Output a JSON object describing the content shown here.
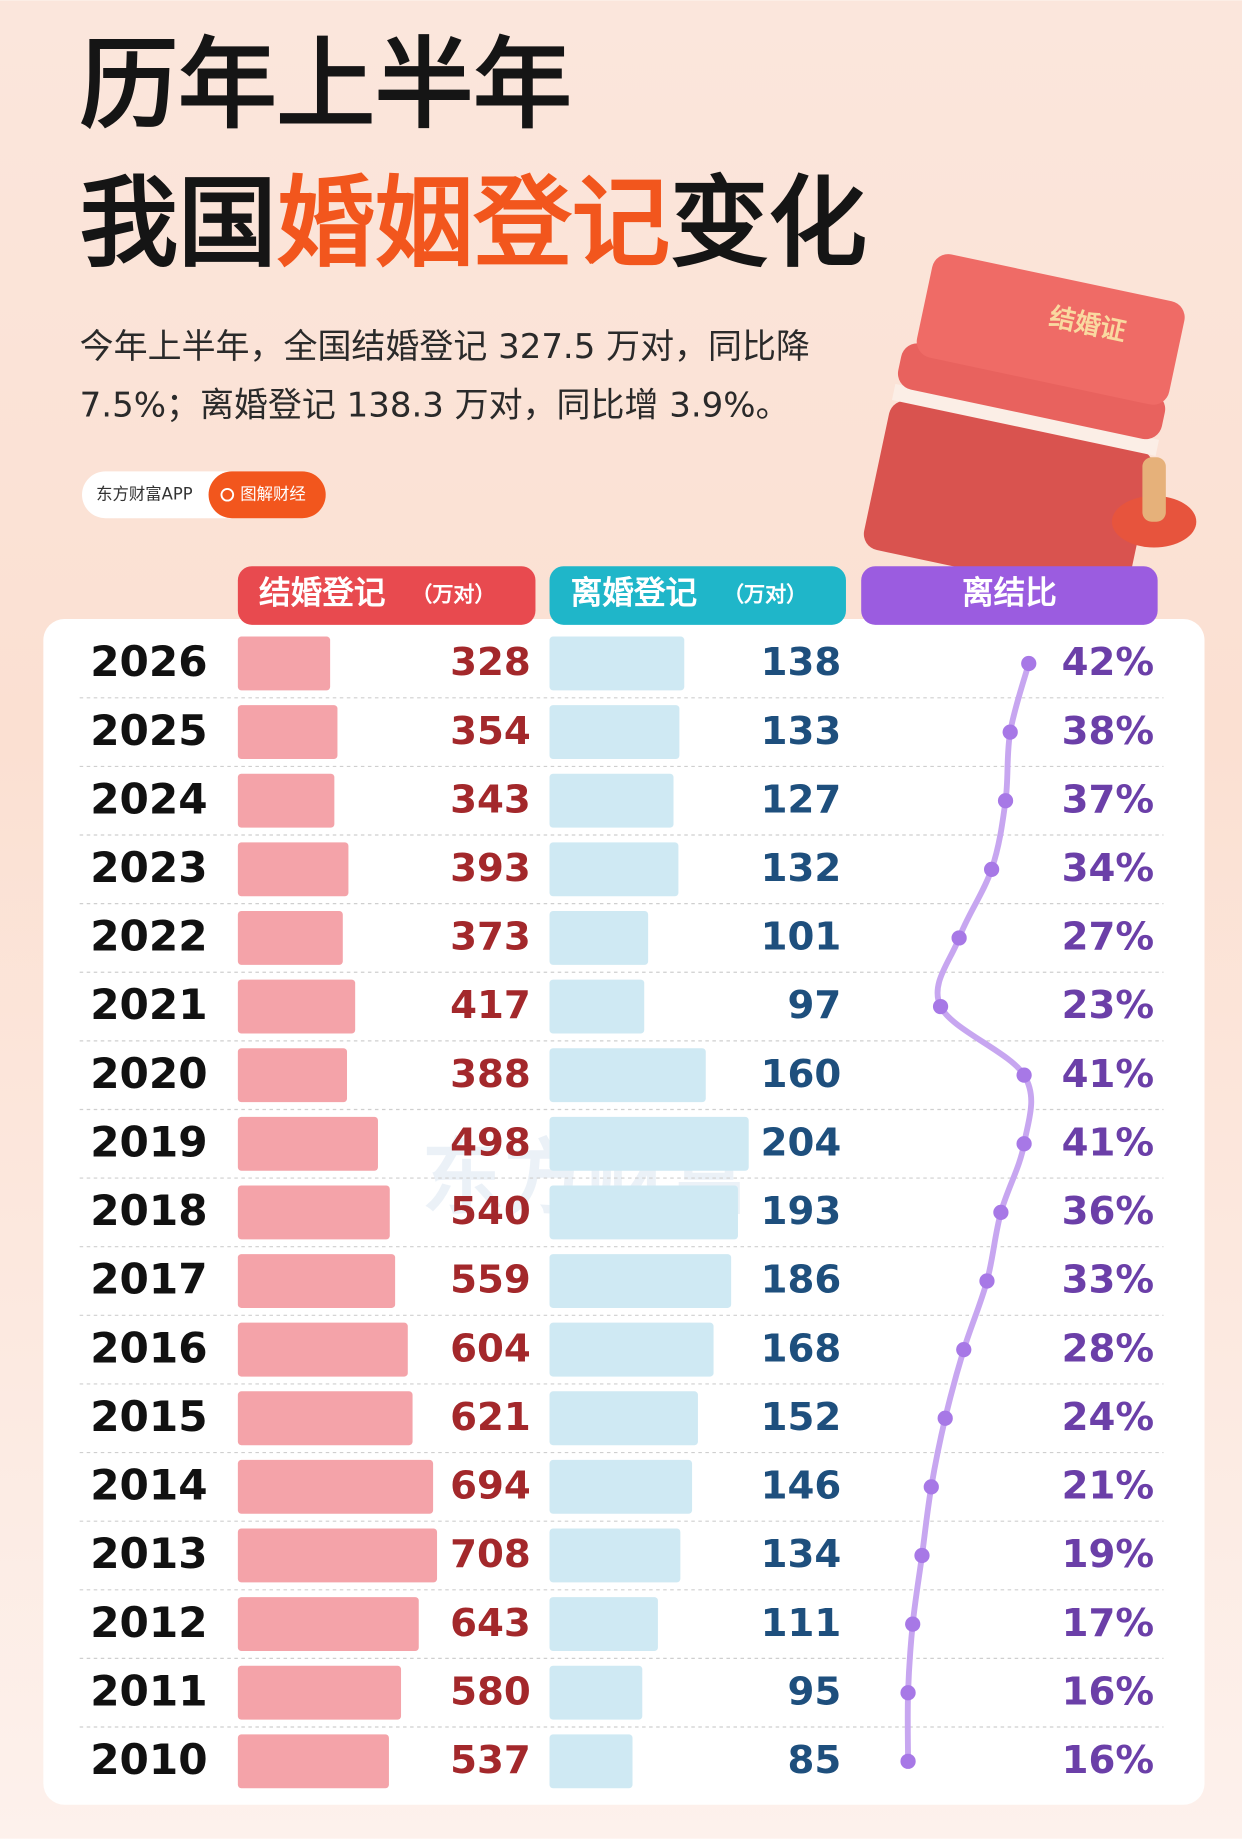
{
  "chart_data": {
    "type": "bar",
    "title_line1": "历年上半年",
    "title_line2": {
      "before": "我国",
      "highlight": "婚姻登记",
      "after": "变化"
    },
    "subtitle": [
      "今年上半年，全国结婚登记 327.5 万对，同比降",
      "7.5%；离婚登记 138.3 万对，同比增 3.9%。"
    ],
    "source": "东方财富APP",
    "source_tag": "图解财经",
    "book_label": "结婚证",
    "watermark": "东方财富",
    "categories": [
      "2026",
      "2025",
      "2024",
      "2023",
      "2022",
      "2021",
      "2020",
      "2019",
      "2018",
      "2017",
      "2016",
      "2015",
      "2014",
      "2013",
      "2012",
      "2011",
      "2010"
    ],
    "series": [
      {
        "name": "结婚登记",
        "unit": "（万对）",
        "color": "#f4a3a9",
        "text_color": "#a3282b",
        "header_color": "#e84a4f",
        "values": [
          328,
          354,
          343,
          393,
          373,
          417,
          388,
          498,
          540,
          559,
          604,
          621,
          694,
          708,
          643,
          580,
          537
        ]
      },
      {
        "name": "离婚登记",
        "unit": "（万对）",
        "color": "#cfe9f3",
        "text_color": "#1e4f7d",
        "header_color": "#1fb6c9",
        "values": [
          138,
          133,
          127,
          132,
          101,
          97,
          160,
          204,
          193,
          186,
          168,
          152,
          146,
          134,
          111,
          95,
          85
        ]
      },
      {
        "name": "离结比",
        "color": "#a778e6",
        "text_color": "#6b3fa8",
        "header_color": "#9b5ce0",
        "values": [
          42,
          38,
          37,
          34,
          27,
          23,
          41,
          41,
          36,
          33,
          28,
          24,
          21,
          19,
          17,
          16,
          16
        ],
        "value_labels": [
          "42%",
          "38%",
          "37%",
          "34%",
          "27%",
          "23%",
          "41%",
          "41%",
          "36%",
          "33%",
          "28%",
          "24%",
          "21%",
          "19%",
          "17%",
          "16%",
          "16%"
        ]
      }
    ]
  }
}
